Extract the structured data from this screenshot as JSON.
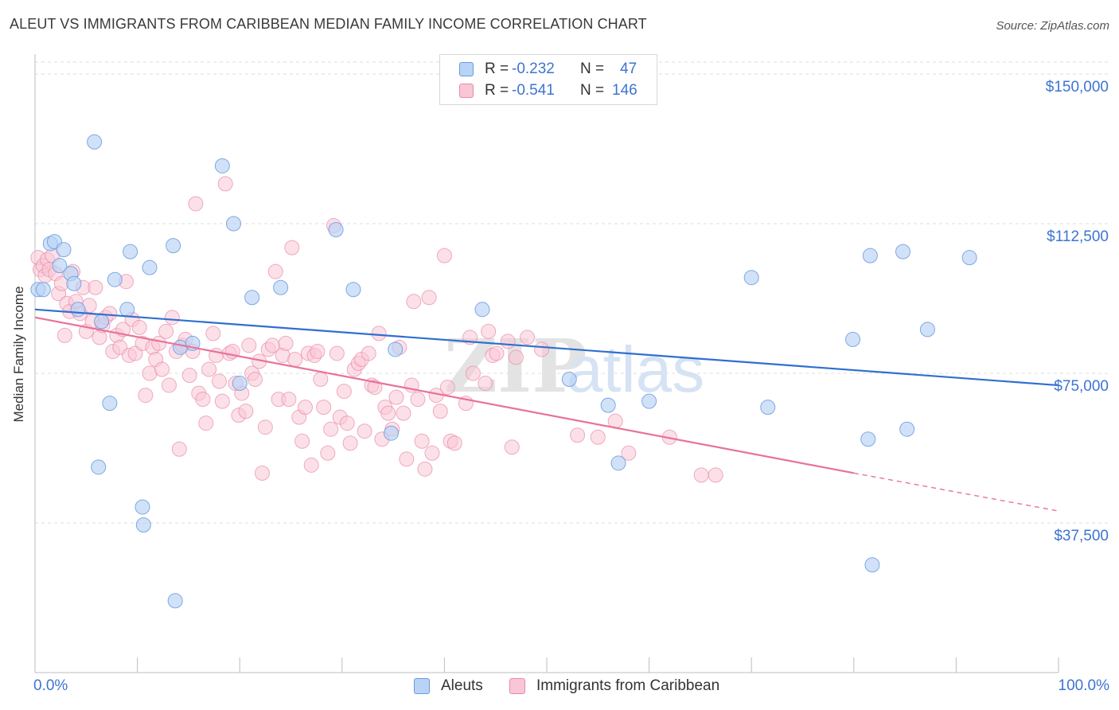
{
  "title": "ALEUT VS IMMIGRANTS FROM CARIBBEAN MEDIAN FAMILY INCOME CORRELATION CHART",
  "source": "Source: ZipAtlas.com",
  "watermark": {
    "zip": "ZIP",
    "atlas": "atlas"
  },
  "legend": {
    "rows": [
      {
        "r_label": "R =",
        "r_value": "-0.232",
        "n_label": "N =",
        "n_value": "47"
      },
      {
        "r_label": "R =",
        "r_value": "-0.541",
        "n_label": "N =",
        "n_value": "146"
      }
    ]
  },
  "colors": {
    "blue_fill": "#b8d3f5",
    "blue_stroke": "#6a9be0",
    "blue_line": "#2f6fd1",
    "pink_fill": "#f9c6d6",
    "pink_stroke": "#e88aa9",
    "pink_line": "#e8729a",
    "axis_text": "#3d74d1",
    "grid": "#dcdcdc"
  },
  "chart_data": {
    "type": "scatter",
    "title": "ALEUT VS IMMIGRANTS FROM CARIBBEAN MEDIAN FAMILY INCOME CORRELATION CHART",
    "xlabel": "",
    "ylabel": "Median Family Income",
    "xlim": [
      0,
      100
    ],
    "ylim": [
      0,
      153000
    ],
    "x_tick_labels": [
      "0.0%",
      "100.0%"
    ],
    "y_ticks": [
      37500,
      75000,
      112500,
      150000
    ],
    "y_tick_labels": [
      "$37,500",
      "$75,000",
      "$112,500",
      "$150,000"
    ],
    "grid": "horizontal dashed",
    "legend_position": "top-center",
    "series": [
      {
        "name": "Aleuts",
        "color": "#6a9be0",
        "r": -0.232,
        "n": 47,
        "trend": {
          "x": [
            0,
            100
          ],
          "y": [
            91000,
            72000
          ]
        },
        "points": [
          [
            0.3,
            96000
          ],
          [
            0.8,
            96000
          ],
          [
            1.5,
            107500
          ],
          [
            1.9,
            108000
          ],
          [
            2.4,
            102000
          ],
          [
            2.8,
            106000
          ],
          [
            3.5,
            100000
          ],
          [
            3.8,
            97500
          ],
          [
            4.2,
            91000
          ],
          [
            5.8,
            133000
          ],
          [
            6.2,
            51500
          ],
          [
            6.5,
            88000
          ],
          [
            7.3,
            67500
          ],
          [
            7.8,
            98500
          ],
          [
            9.0,
            91000
          ],
          [
            9.3,
            105500
          ],
          [
            10.5,
            41500
          ],
          [
            10.6,
            37000
          ],
          [
            11.2,
            101500
          ],
          [
            13.5,
            107000
          ],
          [
            13.7,
            18000
          ],
          [
            14.2,
            81500
          ],
          [
            15.4,
            82500
          ],
          [
            18.3,
            127000
          ],
          [
            19.4,
            112500
          ],
          [
            20.0,
            72500
          ],
          [
            21.2,
            94000
          ],
          [
            24.0,
            96500
          ],
          [
            29.4,
            111000
          ],
          [
            31.1,
            96000
          ],
          [
            34.8,
            60000
          ],
          [
            35.2,
            81000
          ],
          [
            43.7,
            91000
          ],
          [
            52.2,
            73500
          ],
          [
            56.0,
            67000
          ],
          [
            57.0,
            52500
          ],
          [
            60.0,
            68000
          ],
          [
            70.0,
            99000
          ],
          [
            71.6,
            66500
          ],
          [
            79.9,
            83500
          ],
          [
            81.4,
            58500
          ],
          [
            81.6,
            104500
          ],
          [
            81.8,
            27000
          ],
          [
            84.8,
            105500
          ],
          [
            85.2,
            61000
          ],
          [
            87.2,
            86000
          ],
          [
            91.3,
            104000
          ]
        ]
      },
      {
        "name": "Immigrants from Caribbean",
        "color": "#e88aa9",
        "r": -0.541,
        "n": 146,
        "trend": {
          "x": [
            0,
            80
          ],
          "y": [
            89000,
            50000
          ],
          "dashed_to": [
            100,
            40500
          ]
        },
        "points": [
          [
            0.3,
            104000
          ],
          [
            0.5,
            101000
          ],
          [
            0.8,
            102000
          ],
          [
            1.0,
            99500
          ],
          [
            1.2,
            103500
          ],
          [
            1.4,
            101000
          ],
          [
            1.7,
            104500
          ],
          [
            2.0,
            100000
          ],
          [
            2.3,
            95000
          ],
          [
            2.6,
            97500
          ],
          [
            2.9,
            84500
          ],
          [
            3.1,
            92500
          ],
          [
            3.4,
            90500
          ],
          [
            3.7,
            100500
          ],
          [
            4.0,
            93000
          ],
          [
            4.4,
            90000
          ],
          [
            4.7,
            96500
          ],
          [
            5.0,
            85500
          ],
          [
            5.3,
            92000
          ],
          [
            5.6,
            88000
          ],
          [
            5.9,
            96500
          ],
          [
            6.3,
            84000
          ],
          [
            6.6,
            87000
          ],
          [
            6.9,
            89000
          ],
          [
            7.3,
            90000
          ],
          [
            7.6,
            80500
          ],
          [
            8.0,
            84500
          ],
          [
            8.3,
            81500
          ],
          [
            8.6,
            86000
          ],
          [
            8.9,
            98000
          ],
          [
            9.2,
            79500
          ],
          [
            9.5,
            88500
          ],
          [
            9.8,
            80000
          ],
          [
            10.2,
            86500
          ],
          [
            10.5,
            82500
          ],
          [
            10.8,
            69500
          ],
          [
            11.2,
            75000
          ],
          [
            11.5,
            81500
          ],
          [
            11.8,
            78500
          ],
          [
            12.1,
            82500
          ],
          [
            12.4,
            76000
          ],
          [
            12.8,
            85500
          ],
          [
            13.1,
            72000
          ],
          [
            13.4,
            89000
          ],
          [
            13.8,
            80500
          ],
          [
            14.1,
            56000
          ],
          [
            14.4,
            82000
          ],
          [
            14.7,
            83500
          ],
          [
            15.1,
            74500
          ],
          [
            15.4,
            80500
          ],
          [
            15.7,
            117500
          ],
          [
            16.0,
            70000
          ],
          [
            16.4,
            68500
          ],
          [
            16.7,
            62500
          ],
          [
            17.0,
            76000
          ],
          [
            17.4,
            85000
          ],
          [
            17.7,
            79500
          ],
          [
            18.0,
            73000
          ],
          [
            18.3,
            68000
          ],
          [
            18.6,
            122500
          ],
          [
            19.0,
            80000
          ],
          [
            19.3,
            80500
          ],
          [
            19.6,
            72500
          ],
          [
            19.9,
            64500
          ],
          [
            20.2,
            70000
          ],
          [
            20.6,
            65500
          ],
          [
            20.9,
            82000
          ],
          [
            21.2,
            75000
          ],
          [
            21.5,
            73500
          ],
          [
            21.9,
            78000
          ],
          [
            22.2,
            50000
          ],
          [
            22.5,
            61500
          ],
          [
            22.8,
            81000
          ],
          [
            23.2,
            82000
          ],
          [
            23.5,
            100500
          ],
          [
            23.8,
            68500
          ],
          [
            24.2,
            79500
          ],
          [
            24.5,
            82500
          ],
          [
            24.8,
            68500
          ],
          [
            25.1,
            106500
          ],
          [
            25.4,
            78500
          ],
          [
            25.8,
            64000
          ],
          [
            26.1,
            58000
          ],
          [
            26.4,
            66500
          ],
          [
            26.7,
            80000
          ],
          [
            27.0,
            52000
          ],
          [
            27.3,
            79500
          ],
          [
            27.6,
            80500
          ],
          [
            27.9,
            73500
          ],
          [
            28.2,
            66500
          ],
          [
            28.6,
            55000
          ],
          [
            28.9,
            61000
          ],
          [
            29.2,
            112000
          ],
          [
            29.5,
            80000
          ],
          [
            29.8,
            64000
          ],
          [
            30.2,
            70500
          ],
          [
            30.5,
            62500
          ],
          [
            30.8,
            57500
          ],
          [
            31.2,
            76000
          ],
          [
            31.6,
            77500
          ],
          [
            31.9,
            78500
          ],
          [
            32.2,
            60500
          ],
          [
            32.6,
            80000
          ],
          [
            32.9,
            72000
          ],
          [
            33.2,
            71500
          ],
          [
            33.6,
            85000
          ],
          [
            33.9,
            58500
          ],
          [
            34.2,
            66500
          ],
          [
            34.5,
            65000
          ],
          [
            34.9,
            61000
          ],
          [
            35.3,
            69000
          ],
          [
            35.6,
            81500
          ],
          [
            36.0,
            65000
          ],
          [
            36.3,
            53500
          ],
          [
            36.8,
            72000
          ],
          [
            37.0,
            93000
          ],
          [
            37.4,
            68500
          ],
          [
            37.8,
            58000
          ],
          [
            38.1,
            51000
          ],
          [
            38.5,
            94000
          ],
          [
            38.8,
            55000
          ],
          [
            39.2,
            69500
          ],
          [
            39.6,
            65500
          ],
          [
            40.0,
            104500
          ],
          [
            40.3,
            71500
          ],
          [
            40.6,
            58000
          ],
          [
            41.0,
            57500
          ],
          [
            42.1,
            67500
          ],
          [
            42.5,
            84000
          ],
          [
            42.8,
            75000
          ],
          [
            44.0,
            72500
          ],
          [
            44.3,
            85500
          ],
          [
            44.7,
            79500
          ],
          [
            45.1,
            80000
          ],
          [
            46.2,
            83000
          ],
          [
            46.6,
            56500
          ],
          [
            47.0,
            79000
          ],
          [
            48.1,
            84000
          ],
          [
            49.5,
            81000
          ],
          [
            53.0,
            59500
          ],
          [
            55.0,
            59000
          ],
          [
            56.7,
            63000
          ],
          [
            58.0,
            55000
          ],
          [
            62.0,
            59000
          ],
          [
            65.1,
            49500
          ],
          [
            66.5,
            49500
          ]
        ]
      }
    ]
  },
  "axis": {
    "y_title": "Median Family Income",
    "x_left": "0.0%",
    "x_right": "100.0%",
    "y_labels": [
      "$150,000",
      "$112,500",
      "$75,000",
      "$37,500"
    ]
  },
  "bottom_legend": [
    {
      "label": "Aleuts"
    },
    {
      "label": "Immigrants from Caribbean"
    }
  ]
}
